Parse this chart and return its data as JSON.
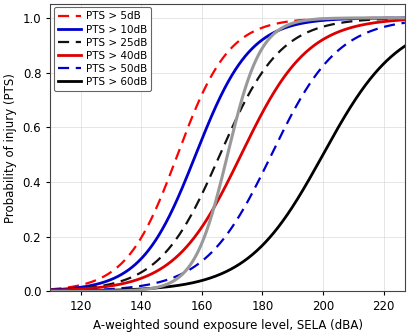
{
  "title": "",
  "xlabel": "A-weighted sound exposure level, SELA (dBA)",
  "ylabel": "Probability of injury (PTS)",
  "xlim": [
    110,
    227
  ],
  "ylim": [
    0,
    1.05
  ],
  "xticks": [
    120,
    140,
    160,
    180,
    200,
    220
  ],
  "yticks": [
    0,
    0.2,
    0.4,
    0.6,
    0.8,
    1.0
  ],
  "curves": [
    {
      "label": "PTS > 5dB",
      "color": "#ff0000",
      "linestyle": "--",
      "mu": 152.0,
      "sigma": 8.5,
      "lw": 1.6,
      "dashes": [
        5,
        3
      ]
    },
    {
      "label": "PTS > 10dB",
      "color": "#0000cc",
      "linestyle": "-",
      "mu": 158.0,
      "sigma": 9.0,
      "lw": 2.0,
      "dashes": null
    },
    {
      "label": "PTS > 25dB",
      "color": "#111111",
      "linestyle": "--",
      "mu": 166.0,
      "sigma": 10.0,
      "lw": 1.6,
      "dashes": [
        5,
        3
      ]
    },
    {
      "label": "PTS > 40dB",
      "color": "#dd0000",
      "linestyle": "-",
      "mu": 173.0,
      "sigma": 11.0,
      "lw": 2.0,
      "dashes": null
    },
    {
      "label": "PTS > 50dB",
      "color": "#0000cc",
      "linestyle": "--",
      "mu": 183.0,
      "sigma": 11.0,
      "lw": 1.6,
      "dashes": [
        5,
        3
      ]
    },
    {
      "label": "PTS > 60dB",
      "color": "#000000",
      "linestyle": "-",
      "mu": 200.0,
      "sigma": 12.5,
      "lw": 2.0,
      "dashes": null
    }
  ],
  "gray_curve": {
    "color": "#999999",
    "linestyle": "-",
    "mu": 168.5,
    "sigma": 5.5,
    "lw": 2.2
  },
  "legend_fontsize": 7.5,
  "grid_color": "#d3d3d3",
  "background_color": "#ffffff",
  "tick_fontsize": 8.5,
  "label_fontsize": 8.5
}
